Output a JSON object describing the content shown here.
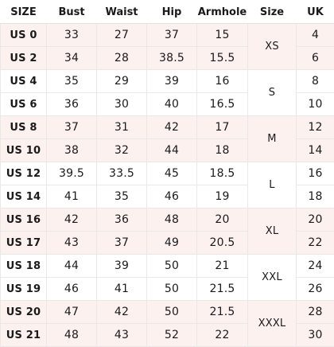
{
  "headers": [
    "SIZE",
    "Bust",
    "Waist",
    "Hip",
    "Armhole",
    "Size",
    "UK"
  ],
  "rows": [
    {
      "us": "US 0",
      "bust": "33",
      "waist": "27",
      "hip": "37",
      "armhole": "15",
      "uk": "4"
    },
    {
      "us": "US 2",
      "bust": "34",
      "waist": "28",
      "hip": "38.5",
      "armhole": "15.5",
      "uk": "6"
    },
    {
      "us": "US 4",
      "bust": "35",
      "waist": "29",
      "hip": "39",
      "armhole": "16",
      "uk": "8"
    },
    {
      "us": "US 6",
      "bust": "36",
      "waist": "30",
      "hip": "40",
      "armhole": "16.5",
      "uk": "10"
    },
    {
      "us": "US 8",
      "bust": "37",
      "waist": "31",
      "hip": "42",
      "armhole": "17",
      "uk": "12"
    },
    {
      "us": "US 10",
      "bust": "38",
      "waist": "32",
      "hip": "44",
      "armhole": "18",
      "uk": "14"
    },
    {
      "us": "US 12",
      "bust": "39.5",
      "waist": "33.5",
      "hip": "45",
      "armhole": "18.5",
      "uk": "16"
    },
    {
      "us": "US 14",
      "bust": "41",
      "waist": "35",
      "hip": "46",
      "armhole": "19",
      "uk": "18"
    },
    {
      "us": "US 16",
      "bust": "42",
      "waist": "36",
      "hip": "48",
      "armhole": "20",
      "uk": "20"
    },
    {
      "us": "US 17",
      "bust": "43",
      "waist": "37",
      "hip": "49",
      "armhole": "20.5",
      "uk": "22"
    },
    {
      "us": "US 18",
      "bust": "44",
      "waist": "39",
      "hip": "50",
      "armhole": "21",
      "uk": "24"
    },
    {
      "us": "US 19",
      "bust": "46",
      "waist": "41",
      "hip": "50",
      "armhole": "21.5",
      "uk": "26"
    },
    {
      "us": "US 20",
      "bust": "47",
      "waist": "42",
      "hip": "50",
      "armhole": "21.5",
      "uk": "28"
    },
    {
      "us": "US 21",
      "bust": "48",
      "waist": "43",
      "hip": "52",
      "armhole": "22",
      "uk": "30"
    }
  ],
  "size_groups": [
    "XS",
    "S",
    "M",
    "L",
    "XL",
    "XXL",
    "XXXL"
  ],
  "colors": {
    "shade": "#fcf1ee",
    "plain": "#ffffff",
    "grid": "#e8e8e8",
    "text": "#1a1a1a"
  }
}
